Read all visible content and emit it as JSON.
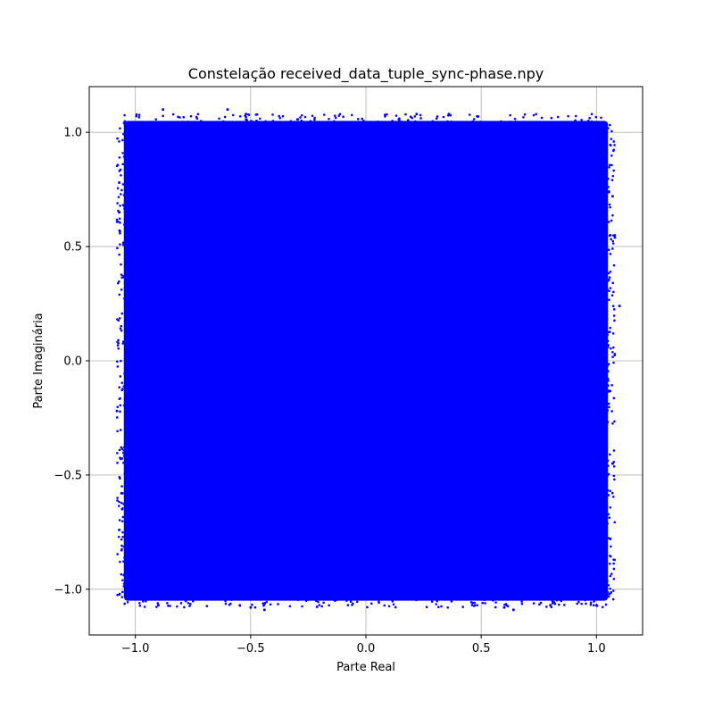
{
  "chart_data": {
    "type": "scatter",
    "title": "Constelação received_data_tuple_sync-phase.npy",
    "xlabel": "Parte Real",
    "ylabel": "Parte Imaginária",
    "xlim": [
      -1.2,
      1.2
    ],
    "ylim": [
      -1.2,
      1.2
    ],
    "xticks": [
      {
        "value": -1.0,
        "label": "−1.0"
      },
      {
        "value": -0.5,
        "label": "−0.5"
      },
      {
        "value": 0.0,
        "label": "0.0"
      },
      {
        "value": 0.5,
        "label": "0.5"
      },
      {
        "value": 1.0,
        "label": "1.0"
      }
    ],
    "yticks": [
      {
        "value": -1.0,
        "label": "−1.0"
      },
      {
        "value": -0.5,
        "label": "−0.5"
      },
      {
        "value": 0.0,
        "label": "0.0"
      },
      {
        "value": 0.5,
        "label": "0.5"
      },
      {
        "value": 1.0,
        "label": "1.0"
      }
    ],
    "grid": true,
    "marker_color": "#0000ff",
    "point_cloud": {
      "distribution": "uniform square",
      "x_range": [
        -1.05,
        1.05
      ],
      "y_range": [
        -1.05,
        1.05
      ]
    },
    "outlier_points": [
      {
        "x": -0.88,
        "y": 1.1
      },
      {
        "x": -0.6,
        "y": 1.1
      },
      {
        "x": -0.52,
        "y": 1.08
      },
      {
        "x": 0.36,
        "y": 1.08
      },
      {
        "x": 0.22,
        "y": 1.08
      },
      {
        "x": -1.07,
        "y": 0.78
      },
      {
        "x": -1.07,
        "y": 0.65
      },
      {
        "x": -1.08,
        "y": -0.22
      },
      {
        "x": -1.07,
        "y": -0.74
      },
      {
        "x": -1.06,
        "y": -0.58
      },
      {
        "x": 1.1,
        "y": 0.24
      },
      {
        "x": 1.08,
        "y": 0.54
      },
      {
        "x": 1.07,
        "y": 0.72
      },
      {
        "x": 1.07,
        "y": -0.45
      },
      {
        "x": 1.06,
        "y": -0.78
      },
      {
        "x": -0.9,
        "y": -1.07
      },
      {
        "x": -0.5,
        "y": -1.08
      },
      {
        "x": -0.44,
        "y": -1.09
      },
      {
        "x": 0.6,
        "y": -1.08
      },
      {
        "x": 0.64,
        "y": -1.09
      },
      {
        "x": 0.8,
        "y": -1.07
      },
      {
        "x": 1.0,
        "y": -1.07
      }
    ]
  }
}
